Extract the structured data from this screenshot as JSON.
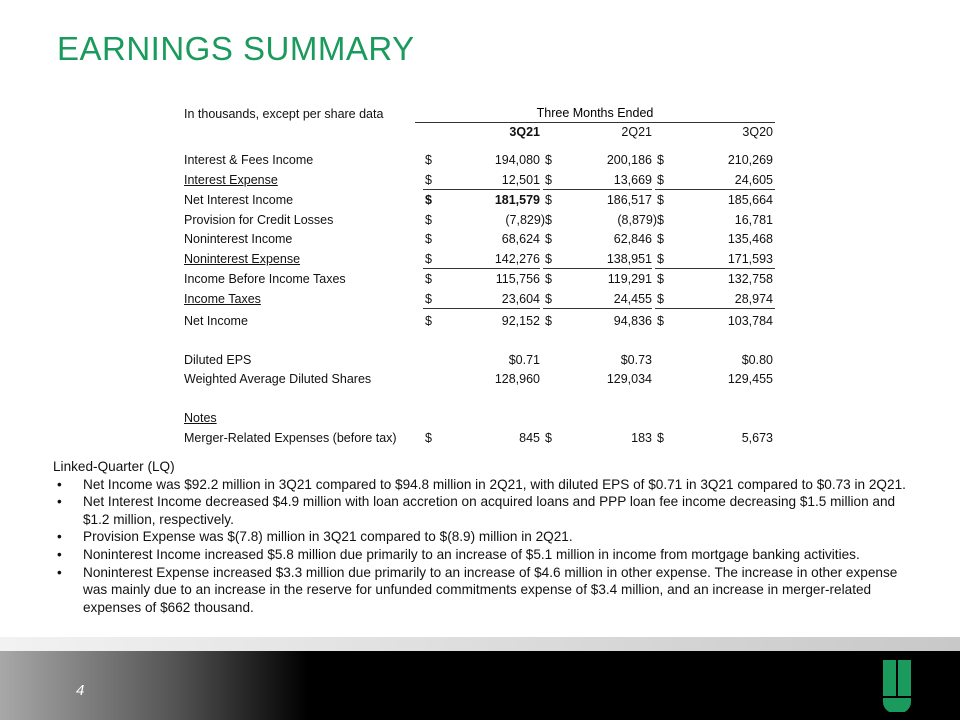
{
  "title": "EARNINGS SUMMARY",
  "table": {
    "units_note": "In thousands, except per share data",
    "period_header": "Three Months Ended",
    "columns": [
      "3Q21",
      "2Q21",
      "3Q20"
    ],
    "rows": [
      {
        "label": "Interest & Fees Income",
        "cur": [
          "$",
          "$",
          "$"
        ],
        "values": [
          "194,080",
          "200,186",
          "210,269"
        ]
      },
      {
        "label": "Interest Expense",
        "cur": [
          "$",
          "$",
          "$"
        ],
        "values": [
          "12,501",
          "13,669",
          "24,605"
        ]
      },
      {
        "label": "Net Interest Income",
        "cur": [
          "$",
          "$",
          "$"
        ],
        "values": [
          "181,579",
          "186,517",
          "185,664"
        ]
      },
      {
        "label": "Provision for Credit Losses",
        "cur": [
          "$",
          "$",
          "$"
        ],
        "values": [
          "(7,829)",
          "(8,879)",
          "16,781"
        ]
      },
      {
        "label": "Noninterest Income",
        "cur": [
          "$",
          "$",
          "$"
        ],
        "values": [
          "68,624",
          "62,846",
          "135,468"
        ]
      },
      {
        "label": "Noninterest Expense",
        "cur": [
          "$",
          "$",
          "$"
        ],
        "values": [
          "142,276",
          "138,951",
          "171,593"
        ]
      },
      {
        "label": "Income Before Income Taxes",
        "cur": [
          "$",
          "$",
          "$"
        ],
        "values": [
          "115,756",
          "119,291",
          "132,758"
        ]
      },
      {
        "label": "Income Taxes",
        "cur": [
          "$",
          "$",
          "$"
        ],
        "values": [
          "23,604",
          "24,455",
          "28,974"
        ]
      },
      {
        "label": "Net Income",
        "cur": [
          "$",
          "$",
          "$"
        ],
        "values": [
          "92,152",
          "94,836",
          "103,784"
        ]
      },
      {
        "label": "Diluted EPS",
        "values": [
          "$0.71",
          "$0.73",
          "$0.80"
        ]
      },
      {
        "label": "Weighted Average Diluted Shares",
        "values": [
          "128,960",
          "129,034",
          "129,455"
        ]
      },
      {
        "label": "Notes"
      },
      {
        "label": "Merger-Related Expenses (before tax)",
        "cur": [
          "$",
          "$",
          "$"
        ],
        "values": [
          "845",
          "183",
          "5,673"
        ]
      }
    ]
  },
  "commentary": {
    "heading": "Linked-Quarter (LQ)",
    "bullets": [
      "Net Income was $92.2 million in 3Q21 compared to $94.8 million in 2Q21, with diluted EPS of $0.71 in 3Q21 compared to $0.73 in 2Q21.",
      "Net Interest Income decreased $4.9 million with loan accretion on acquired loans and PPP loan fee income decreasing $1.5 million and $1.2 million, respectively.",
      "Provision Expense was $(7.8) million in 3Q21 compared to $(8.9) million in 2Q21.",
      "Noninterest Income increased $5.8 million due primarily to an increase of $5.1 million in income from mortgage banking activities.",
      "Noninterest Expense increased $3.3 million due primarily to an increase of $4.6 million in other expense.  The increase in other expense was mainly due to an increase in the reserve for unfunded commitments expense of $3.4 million, and an increase in merger-related expenses of $662 thousand."
    ]
  },
  "footer": {
    "page_number": "4",
    "logo_color": "#1a9a5c"
  }
}
